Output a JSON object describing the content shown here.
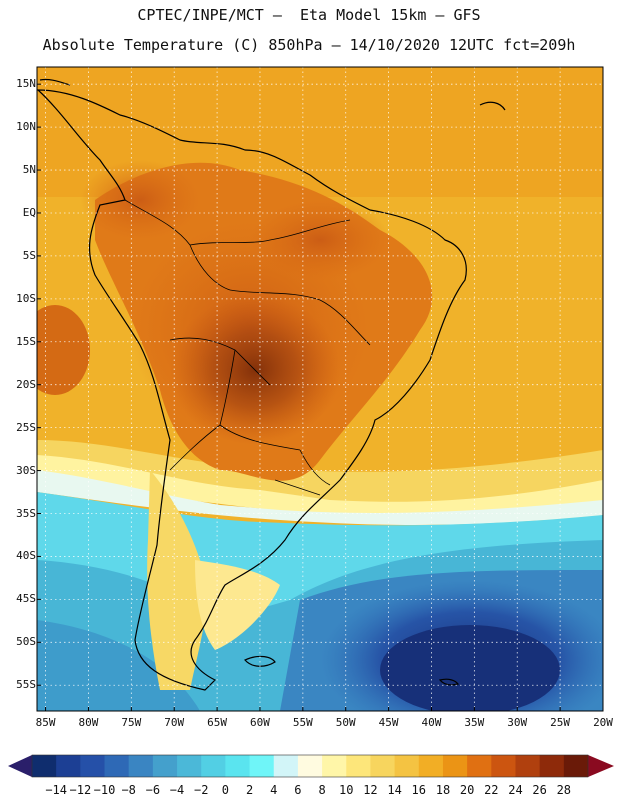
{
  "header": {
    "line1": "CPTEC/INPE/MCT –  Eta Model 15km – GFS",
    "line2": "Absolute Temperature (C) 850hPa – 14/10/2020 12UTC fct=209h"
  },
  "axes": {
    "lat_labels": [
      "15N",
      "10N",
      "5N",
      "EQ",
      "5S",
      "10S",
      "15S",
      "20S",
      "25S",
      "30S",
      "35S",
      "40S",
      "45S",
      "50S",
      "55S"
    ],
    "lon_labels": [
      "85W",
      "80W",
      "75W",
      "70W",
      "65W",
      "60W",
      "55W",
      "50W",
      "45W",
      "40W",
      "35W",
      "30W",
      "25W",
      "20W"
    ],
    "lat_range": [
      17,
      -58
    ],
    "lon_range": [
      -86,
      -20
    ]
  },
  "colorbar": {
    "labels": [
      "-14",
      "-12",
      "-10",
      "-8",
      "-6",
      "-4",
      "-2",
      "0",
      "2",
      "4",
      "6",
      "8",
      "10",
      "12",
      "14",
      "16",
      "18",
      "20",
      "22",
      "24",
      "26",
      "28"
    ],
    "colors": [
      "#0f2d6e",
      "#1c3f94",
      "#2550a8",
      "#2e69b6",
      "#3a85c2",
      "#44a0cc",
      "#4bb8d8",
      "#52cfe4",
      "#5ae4ef",
      "#6ff5f8",
      "#d2f5f8",
      "#fffbe0",
      "#fff6a8",
      "#fde67a",
      "#f7d55e",
      "#f4c342",
      "#f2ae25",
      "#eb9415",
      "#e07012",
      "#cc5510",
      "#b0400e",
      "#8e2a0a",
      "#6a1a08"
    ],
    "end_low": "#2a1f6a",
    "end_high": "#8a0a20"
  }
}
